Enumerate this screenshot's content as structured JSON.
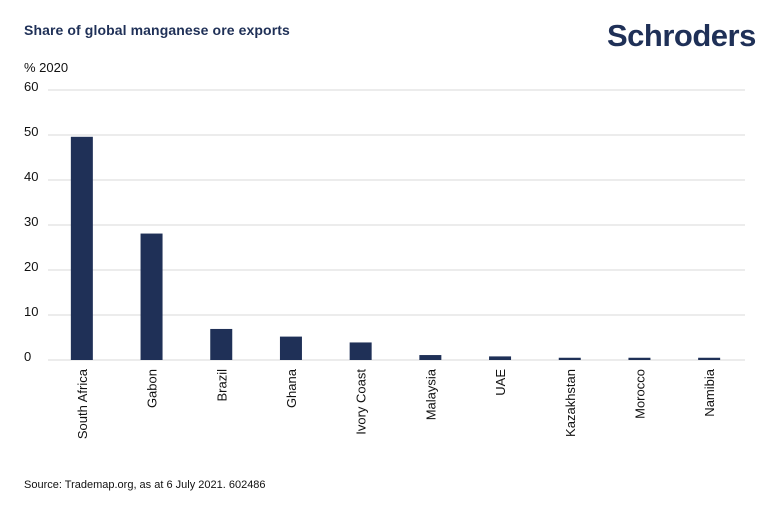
{
  "header": {
    "title": "Share of global manganese ore exports",
    "logo_text": "Schroders"
  },
  "colors": {
    "brand": "#1f3057",
    "bar": "#1f3057",
    "grid": "#d9d9d9"
  },
  "chart_data": {
    "type": "bar",
    "title": "Share of global manganese ore exports",
    "ylabel": "% 2020",
    "xlabel": "",
    "ylim": [
      0,
      60
    ],
    "yticks": [
      0,
      10,
      20,
      30,
      40,
      50,
      60
    ],
    "grid": true,
    "categories": [
      "South Africa",
      "Gabon",
      "Brazil",
      "Ghana",
      "Ivory Coast",
      "Malaysia",
      "UAE",
      "Kazakhstan",
      "Morocco",
      "Namibia"
    ],
    "values": [
      49.6,
      28.1,
      6.9,
      5.2,
      3.9,
      1.1,
      0.8,
      0.5,
      0.5,
      0.5
    ]
  },
  "footer": {
    "source": "Source: Trademap.org, as at 6 July 2021. 602486"
  }
}
